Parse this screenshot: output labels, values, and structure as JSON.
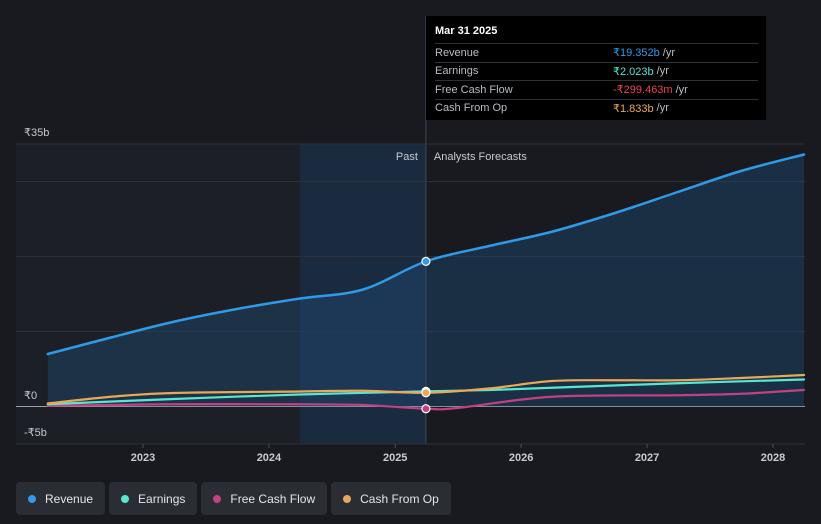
{
  "tooltip": {
    "date": "Mar 31 2025",
    "rows": [
      {
        "label": "Revenue",
        "value": "₹19.352b",
        "unit": "/yr",
        "color": "#2f9ae8"
      },
      {
        "label": "Earnings",
        "value": "₹2.023b",
        "unit": "/yr",
        "color": "#58e6d1"
      },
      {
        "label": "Free Cash Flow",
        "value": "-₹299.463m",
        "unit": "/yr",
        "color": "#e8455c"
      },
      {
        "label": "Cash From Op",
        "value": "₹1.833b",
        "unit": "/yr",
        "color": "#e8a857"
      }
    ]
  },
  "legend": [
    {
      "label": "Revenue",
      "color": "#2f9ae8"
    },
    {
      "label": "Earnings",
      "color": "#58e6d1"
    },
    {
      "label": "Free Cash Flow",
      "color": "#c2417e"
    },
    {
      "label": "Cash From Op",
      "color": "#e8a857"
    }
  ],
  "chart_data": {
    "type": "line",
    "y_unit": "₹ billions",
    "ylim": [
      -5,
      35
    ],
    "y_ticks": [
      {
        "value": 35,
        "label": "₹35b"
      },
      {
        "value": 0,
        "label": "₹0"
      },
      {
        "value": -5,
        "label": "-₹5b"
      }
    ],
    "x_ticks": [
      "2023",
      "2024",
      "2025",
      "2026",
      "2027",
      "2028"
    ],
    "past_label": "Past",
    "forecast_label": "Analysts Forecasts",
    "divider_date": "2025-03-31",
    "series": [
      {
        "name": "Revenue",
        "color": "#2f9ae8",
        "points": [
          [
            "2022-03-31",
            7.0
          ],
          [
            "2022-09-30",
            9.2
          ],
          [
            "2023-03-31",
            11.3
          ],
          [
            "2023-09-30",
            13.0
          ],
          [
            "2024-03-31",
            14.4
          ],
          [
            "2024-09-30",
            15.6
          ],
          [
            "2025-03-31",
            19.35
          ],
          [
            "2025-09-30",
            21.4
          ],
          [
            "2026-03-31",
            23.3
          ],
          [
            "2026-09-30",
            25.8
          ],
          [
            "2027-03-31",
            28.6
          ],
          [
            "2027-09-30",
            31.4
          ],
          [
            "2028-03-31",
            33.6
          ]
        ]
      },
      {
        "name": "Earnings",
        "color": "#58e6d1",
        "points": [
          [
            "2022-03-31",
            0.3
          ],
          [
            "2023-03-31",
            1.0
          ],
          [
            "2024-03-31",
            1.6
          ],
          [
            "2025-03-31",
            2.02
          ],
          [
            "2025-09-30",
            2.2
          ],
          [
            "2026-03-31",
            2.5
          ],
          [
            "2027-03-31",
            3.1
          ],
          [
            "2028-03-31",
            3.6
          ]
        ]
      },
      {
        "name": "Free Cash Flow",
        "color": "#c2417e",
        "points": [
          [
            "2022-03-31",
            0.1
          ],
          [
            "2022-09-30",
            0.2
          ],
          [
            "2023-03-31",
            0.3
          ],
          [
            "2024-03-31",
            0.3
          ],
          [
            "2024-09-30",
            0.2
          ],
          [
            "2025-03-31",
            -0.3
          ],
          [
            "2025-06-30",
            -0.2
          ],
          [
            "2026-03-31",
            1.3
          ],
          [
            "2027-03-31",
            1.5
          ],
          [
            "2027-09-30",
            1.7
          ],
          [
            "2028-03-31",
            2.2
          ]
        ]
      },
      {
        "name": "Cash From Op",
        "color": "#e8a857",
        "points": [
          [
            "2022-03-31",
            0.4
          ],
          [
            "2022-09-30",
            1.3
          ],
          [
            "2023-03-31",
            1.8
          ],
          [
            "2024-03-31",
            2.0
          ],
          [
            "2024-09-30",
            2.1
          ],
          [
            "2025-03-31",
            1.83
          ],
          [
            "2025-09-30",
            2.4
          ],
          [
            "2026-03-31",
            3.4
          ],
          [
            "2026-09-30",
            3.5
          ],
          [
            "2027-03-31",
            3.5
          ],
          [
            "2027-09-30",
            3.8
          ],
          [
            "2028-03-31",
            4.2
          ]
        ]
      }
    ]
  }
}
